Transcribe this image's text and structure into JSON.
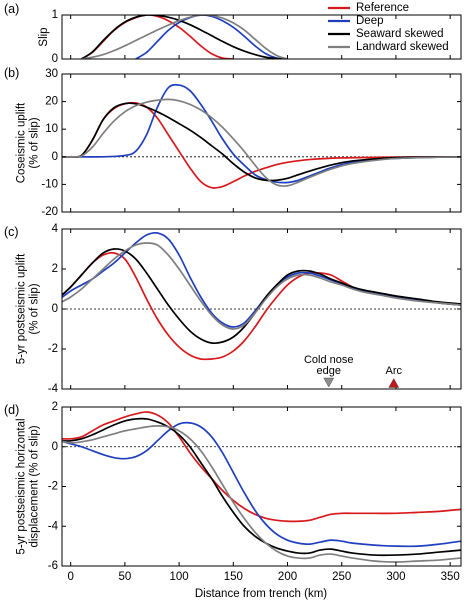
{
  "legend": {
    "entries": [
      {
        "label": "Reference",
        "color": "#d7191c"
      },
      {
        "label": "Deep",
        "color": "#1f3fbf"
      },
      {
        "label": "Seaward skewed",
        "color": "#000000"
      },
      {
        "label": "Landward skewed",
        "color": "#7f7f7f"
      }
    ],
    "placement": "top-right"
  },
  "xlabel": "Distance from trench (km)",
  "xticks": [
    "0",
    "50",
    "100",
    "150",
    "200",
    "250",
    "300",
    "350"
  ],
  "chart_data": [
    {
      "panel": "(a)",
      "type": "line",
      "ylabel_lines": [
        "Slip"
      ],
      "xlim": [
        -8,
        360
      ],
      "ylim": [
        0,
        1
      ],
      "yticks": [
        0,
        1
      ],
      "zero_line": false,
      "series": [
        {
          "name": "Reference",
          "color": "#d7191c",
          "x": [
            10,
            20,
            30,
            40,
            50,
            60,
            70,
            80,
            90,
            100,
            110,
            120,
            130,
            140,
            150
          ],
          "y": [
            0,
            0.15,
            0.4,
            0.65,
            0.83,
            0.94,
            1.0,
            0.97,
            0.87,
            0.72,
            0.52,
            0.3,
            0.12,
            0.02,
            0
          ]
        },
        {
          "name": "Deep",
          "color": "#1f3fbf",
          "x": [
            60,
            70,
            80,
            90,
            100,
            110,
            120,
            130,
            140,
            150,
            160,
            170,
            180,
            190,
            200
          ],
          "y": [
            0,
            0.15,
            0.4,
            0.65,
            0.83,
            0.94,
            1.0,
            0.97,
            0.87,
            0.72,
            0.52,
            0.3,
            0.12,
            0.02,
            0
          ]
        },
        {
          "name": "Seaward skewed",
          "color": "#000000",
          "x": [
            10,
            20,
            30,
            40,
            50,
            60,
            70,
            80,
            90,
            100,
            110,
            120,
            130,
            140,
            150,
            160,
            170,
            180,
            190,
            200
          ],
          "y": [
            0,
            0.16,
            0.42,
            0.66,
            0.84,
            0.95,
            1.0,
            0.99,
            0.95,
            0.88,
            0.78,
            0.66,
            0.53,
            0.4,
            0.28,
            0.18,
            0.1,
            0.04,
            0.01,
            0
          ]
        },
        {
          "name": "Landward skewed",
          "color": "#7f7f7f",
          "x": [
            10,
            20,
            30,
            40,
            50,
            60,
            70,
            80,
            90,
            100,
            110,
            120,
            130,
            140,
            150,
            160,
            170,
            180,
            190,
            200
          ],
          "y": [
            0,
            0.04,
            0.1,
            0.19,
            0.3,
            0.42,
            0.54,
            0.66,
            0.77,
            0.87,
            0.95,
            1.0,
            0.99,
            0.93,
            0.82,
            0.66,
            0.45,
            0.24,
            0.08,
            0
          ]
        }
      ]
    },
    {
      "panel": "(b)",
      "type": "line",
      "ylabel_lines": [
        "Coseismic uplift",
        "(% of slip)"
      ],
      "xlim": [
        -8,
        360
      ],
      "ylim": [
        -20,
        30
      ],
      "yticks": [
        -20,
        -10,
        0,
        10,
        20,
        30
      ],
      "zero_line": true,
      "series": [
        {
          "name": "Reference",
          "color": "#d7191c",
          "x": [
            -10,
            0,
            10,
            20,
            30,
            40,
            50,
            60,
            70,
            80,
            90,
            100,
            110,
            120,
            130,
            140,
            150,
            160,
            170,
            180,
            190,
            200,
            220,
            250,
            300,
            360
          ],
          "y": [
            0,
            0,
            0.5,
            6,
            13.5,
            17.5,
            19.2,
            19.5,
            18,
            14,
            8,
            2,
            -4,
            -9,
            -11.2,
            -10.8,
            -9,
            -7,
            -5.3,
            -4,
            -2.8,
            -2,
            -1,
            -0.4,
            -0.1,
            0
          ]
        },
        {
          "name": "Deep",
          "color": "#1f3fbf",
          "x": [
            -10,
            30,
            50,
            60,
            70,
            80,
            90,
            100,
            110,
            120,
            130,
            140,
            150,
            160,
            170,
            180,
            190,
            200,
            210,
            220,
            230,
            240,
            260,
            300,
            360
          ],
          "y": [
            0,
            0,
            0.5,
            2,
            8,
            18,
            25,
            26,
            24,
            19,
            13,
            6.5,
            1,
            -3,
            -6.5,
            -8.3,
            -9.2,
            -9.3,
            -8.5,
            -7,
            -5.5,
            -4,
            -2,
            -0.6,
            0
          ]
        },
        {
          "name": "Seaward skewed",
          "color": "#000000",
          "x": [
            -10,
            0,
            10,
            20,
            30,
            40,
            50,
            60,
            70,
            80,
            90,
            100,
            110,
            120,
            130,
            140,
            150,
            160,
            170,
            180,
            190,
            200,
            210,
            220,
            240,
            260,
            300,
            360
          ],
          "y": [
            0,
            0,
            0.5,
            6,
            13.5,
            17.8,
            19.3,
            19.2,
            18,
            16.3,
            14.3,
            12,
            9.7,
            7,
            4,
            1,
            -2.5,
            -5.5,
            -7.6,
            -8.5,
            -8.5,
            -7.8,
            -6.5,
            -5.2,
            -3,
            -1.5,
            -0.3,
            0
          ]
        },
        {
          "name": "Landward skewed",
          "color": "#7f7f7f",
          "x": [
            -10,
            0,
            10,
            20,
            30,
            40,
            50,
            60,
            70,
            80,
            90,
            100,
            110,
            120,
            130,
            140,
            150,
            160,
            170,
            180,
            190,
            200,
            210,
            220,
            240,
            260,
            300,
            360
          ],
          "y": [
            0,
            0,
            0.3,
            3.5,
            8.5,
            13,
            16.3,
            18.5,
            19.8,
            20.5,
            20.8,
            20.3,
            19,
            17,
            14.2,
            10.7,
            6.5,
            2,
            -3,
            -7.5,
            -10.2,
            -10.5,
            -9.2,
            -7.5,
            -4.5,
            -2.4,
            -0.6,
            0
          ]
        }
      ]
    },
    {
      "panel": "(c)",
      "type": "line",
      "ylabel_lines": [
        "5-yr postseismic uplift",
        "(% of slip)"
      ],
      "xlim": [
        -8,
        360
      ],
      "ylim": [
        -4,
        4
      ],
      "yticks": [
        -4,
        -2,
        0,
        2,
        4
      ],
      "zero_line": true,
      "series": [
        {
          "name": "Reference",
          "color": "#d7191c",
          "x": [
            -10,
            0,
            10,
            20,
            30,
            40,
            50,
            60,
            70,
            80,
            90,
            100,
            110,
            120,
            130,
            140,
            150,
            160,
            170,
            180,
            190,
            200,
            210,
            220,
            230,
            240,
            250,
            260,
            270,
            280,
            290,
            300,
            320,
            340,
            360
          ],
          "y": [
            0.6,
            1.1,
            1.7,
            2.3,
            2.7,
            2.8,
            2.5,
            1.6,
            0.5,
            -0.5,
            -1.3,
            -1.9,
            -2.3,
            -2.5,
            -2.5,
            -2.4,
            -2.1,
            -1.6,
            -0.9,
            -0.1,
            0.6,
            1.2,
            1.6,
            1.8,
            1.8,
            1.7,
            1.4,
            1.1,
            0.9,
            0.8,
            0.7,
            0.6,
            0.45,
            0.3,
            0.2
          ]
        },
        {
          "name": "Deep",
          "color": "#1f3fbf",
          "x": [
            -10,
            0,
            10,
            20,
            30,
            40,
            50,
            60,
            70,
            80,
            90,
            100,
            110,
            120,
            130,
            140,
            150,
            160,
            170,
            180,
            190,
            200,
            210,
            220,
            230,
            240,
            250,
            260,
            270,
            280,
            290,
            300,
            320,
            340,
            360
          ],
          "y": [
            0.5,
            0.9,
            1.2,
            1.5,
            1.9,
            2.3,
            2.8,
            3.3,
            3.7,
            3.8,
            3.5,
            2.7,
            1.6,
            0.6,
            -0.2,
            -0.7,
            -0.9,
            -0.7,
            -0.1,
            0.6,
            1.2,
            1.6,
            1.8,
            1.8,
            1.65,
            1.45,
            1.25,
            1.05,
            0.9,
            0.8,
            0.7,
            0.6,
            0.45,
            0.3,
            0.2
          ]
        },
        {
          "name": "Seaward skewed",
          "color": "#000000",
          "x": [
            -10,
            0,
            10,
            20,
            30,
            40,
            50,
            60,
            70,
            80,
            90,
            100,
            110,
            120,
            130,
            140,
            150,
            160,
            170,
            180,
            190,
            200,
            210,
            220,
            230,
            240,
            250,
            260,
            270,
            280,
            290,
            300,
            320,
            340,
            360
          ],
          "y": [
            0.6,
            1.1,
            1.7,
            2.3,
            2.8,
            3.0,
            2.9,
            2.5,
            1.8,
            1.0,
            0.2,
            -0.5,
            -1.1,
            -1.5,
            -1.7,
            -1.65,
            -1.4,
            -0.9,
            -0.2,
            0.6,
            1.2,
            1.7,
            1.9,
            1.9,
            1.75,
            1.5,
            1.3,
            1.1,
            0.95,
            0.85,
            0.75,
            0.65,
            0.5,
            0.35,
            0.25
          ]
        },
        {
          "name": "Landward skewed",
          "color": "#7f7f7f",
          "x": [
            -10,
            0,
            10,
            20,
            30,
            40,
            50,
            60,
            70,
            80,
            90,
            100,
            110,
            120,
            130,
            140,
            150,
            160,
            170,
            180,
            190,
            200,
            210,
            220,
            230,
            240,
            250,
            260,
            270,
            280,
            290,
            300,
            320,
            340,
            360
          ],
          "y": [
            0.3,
            0.6,
            1.0,
            1.5,
            2.0,
            2.5,
            2.9,
            3.2,
            3.3,
            3.2,
            2.7,
            2.0,
            1.2,
            0.4,
            -0.3,
            -0.8,
            -1.0,
            -0.8,
            -0.2,
            0.5,
            1.1,
            1.5,
            1.7,
            1.7,
            1.55,
            1.35,
            1.2,
            1.0,
            0.85,
            0.75,
            0.65,
            0.55,
            0.4,
            0.3,
            0.2
          ]
        }
      ],
      "annotations": [
        {
          "text_lines": [
            "Cold nose",
            "edge"
          ],
          "x": 238,
          "marker": "down-triangle",
          "color": "#8c8c8c"
        },
        {
          "text_lines": [
            "Arc"
          ],
          "x": 298,
          "marker": "up-triangle",
          "color": "#c0171c"
        }
      ]
    },
    {
      "panel": "(d)",
      "type": "line",
      "ylabel_lines": [
        "5-yr postseismic horizontal",
        "displacement (% of slip)"
      ],
      "xlim": [
        -8,
        360
      ],
      "ylim": [
        -6,
        2
      ],
      "yticks": [
        -6,
        -4,
        -2,
        0,
        2
      ],
      "zero_line": true,
      "series": [
        {
          "name": "Reference",
          "color": "#d7191c",
          "x": [
            -10,
            0,
            10,
            20,
            30,
            40,
            50,
            60,
            70,
            80,
            90,
            100,
            110,
            120,
            130,
            140,
            150,
            160,
            170,
            180,
            190,
            200,
            210,
            220,
            230,
            240,
            250,
            260,
            280,
            300,
            320,
            340,
            360
          ],
          "y": [
            0.4,
            0.4,
            0.5,
            0.8,
            1.1,
            1.3,
            1.5,
            1.65,
            1.75,
            1.6,
            1.2,
            0.5,
            -0.3,
            -1.0,
            -1.6,
            -2.2,
            -2.7,
            -3.1,
            -3.4,
            -3.6,
            -3.7,
            -3.75,
            -3.75,
            -3.7,
            -3.55,
            -3.4,
            -3.35,
            -3.35,
            -3.35,
            -3.35,
            -3.3,
            -3.25,
            -3.15
          ]
        },
        {
          "name": "Deep",
          "color": "#1f3fbf",
          "x": [
            -10,
            0,
            10,
            20,
            30,
            40,
            50,
            60,
            70,
            80,
            90,
            100,
            110,
            120,
            130,
            140,
            150,
            160,
            170,
            180,
            190,
            200,
            210,
            220,
            230,
            240,
            250,
            260,
            280,
            300,
            320,
            340,
            360
          ],
          "y": [
            0.3,
            0.15,
            0.0,
            -0.2,
            -0.4,
            -0.55,
            -0.6,
            -0.5,
            -0.2,
            0.3,
            0.8,
            1.15,
            1.2,
            1.0,
            0.5,
            -0.3,
            -1.3,
            -2.3,
            -3.2,
            -3.9,
            -4.4,
            -4.7,
            -4.85,
            -4.9,
            -4.8,
            -4.7,
            -4.75,
            -4.85,
            -4.95,
            -5.0,
            -5.0,
            -4.9,
            -4.75
          ]
        },
        {
          "name": "Seaward skewed",
          "color": "#000000",
          "x": [
            -10,
            0,
            10,
            20,
            30,
            40,
            50,
            60,
            70,
            80,
            90,
            100,
            110,
            120,
            130,
            140,
            150,
            160,
            170,
            180,
            190,
            200,
            210,
            220,
            230,
            240,
            250,
            260,
            280,
            300,
            320,
            340,
            360
          ],
          "y": [
            0.3,
            0.3,
            0.4,
            0.6,
            0.85,
            1.1,
            1.3,
            1.4,
            1.4,
            1.25,
            1.0,
            0.6,
            0.0,
            -0.8,
            -1.6,
            -2.5,
            -3.3,
            -4.0,
            -4.5,
            -4.85,
            -5.1,
            -5.25,
            -5.35,
            -5.35,
            -5.2,
            -5.15,
            -5.25,
            -5.35,
            -5.45,
            -5.45,
            -5.4,
            -5.3,
            -5.2
          ]
        },
        {
          "name": "Landward skewed",
          "color": "#7f7f7f",
          "x": [
            -10,
            0,
            10,
            20,
            30,
            40,
            50,
            60,
            70,
            80,
            90,
            100,
            110,
            120,
            130,
            140,
            150,
            160,
            170,
            180,
            190,
            200,
            210,
            220,
            230,
            240,
            250,
            260,
            280,
            300,
            320,
            340,
            360
          ],
          "y": [
            0.3,
            0.2,
            0.25,
            0.35,
            0.5,
            0.65,
            0.8,
            0.9,
            1.0,
            1.05,
            1.0,
            0.8,
            0.4,
            -0.2,
            -1.0,
            -1.9,
            -2.8,
            -3.6,
            -4.3,
            -4.85,
            -5.25,
            -5.5,
            -5.6,
            -5.6,
            -5.45,
            -5.4,
            -5.5,
            -5.6,
            -5.75,
            -5.8,
            -5.75,
            -5.7,
            -5.6
          ]
        }
      ]
    }
  ]
}
